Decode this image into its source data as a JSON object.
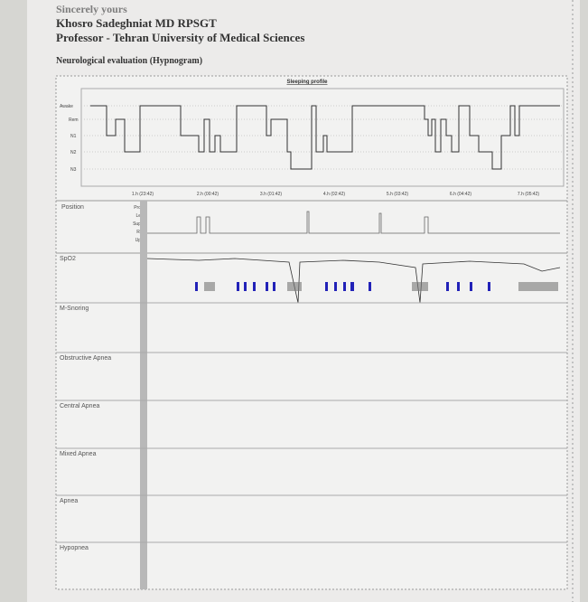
{
  "header": {
    "closing": "Sincerely yours",
    "name": "Khosro Sadeghniat MD RPSGT",
    "affiliation": "Professor - Tehran University of Medical Sciences"
  },
  "section_title": "Neurological evaluation (Hypnogram)",
  "hypnogram": {
    "title": "Sleeping profile",
    "stages": [
      "Awake",
      "Rem",
      "N1",
      "N2",
      "N3"
    ],
    "time_labels": [
      "1.h (23:42)",
      "2.h (00:42)",
      "3.h (01:42)",
      "4.h (02:42)",
      "5.h (03:42)",
      "6.h (04:42)",
      "7.h (05:42)"
    ]
  },
  "position": {
    "label": "Position",
    "levels": [
      "Pro",
      "Le",
      "Sup",
      "Ri",
      "Up"
    ]
  },
  "channels": [
    "SpO2",
    "M-Snoring",
    "Obstructive Apnea",
    "Central Apnea",
    "Mixed Apnea",
    "Apnea",
    "Hypopnea"
  ]
}
